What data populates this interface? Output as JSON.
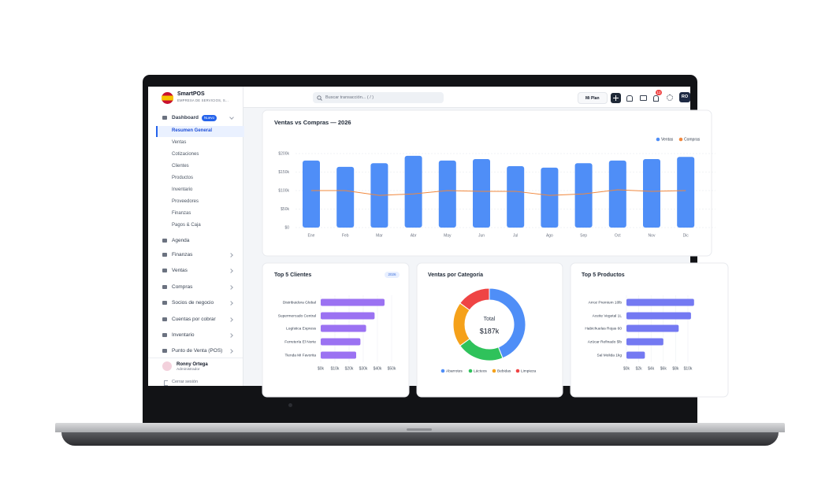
{
  "header": {
    "brand": "SmartPOS",
    "company": "EMPRESA DE SERVICIOS, S...",
    "search": "Buscar transacción... ( / )",
    "plan": "Mi Plan",
    "notifications": "12",
    "user_initials": "RO"
  },
  "sidebar": {
    "dashboard": "Dashboard",
    "badge": "Nuevo",
    "subitems": [
      "Resumen General",
      "Ventas",
      "Cotizaciones",
      "Clientes",
      "Productos",
      "Inventario",
      "Proveedores",
      "Finanzas",
      "Pagos & Caja"
    ],
    "items": [
      "Agenda",
      "Finanzas",
      "Ventas",
      "Compras",
      "Socios de negocio",
      "Cuentas por cobrar",
      "Inventario",
      "Punto de Venta (POS)"
    ],
    "user": {
      "name": "Ronny Ortega",
      "role": "Administrador"
    },
    "logout": "Cerrar sesión"
  },
  "chart_data": [
    {
      "type": "bar",
      "title": "Ventas vs Compras — 2026",
      "categories": [
        "Ene",
        "Feb",
        "Mar",
        "Abr",
        "May",
        "Jun",
        "Jul",
        "Ago",
        "Sep",
        "Oct",
        "Nov",
        "Dic"
      ],
      "series": [
        {
          "name": "Ventas",
          "color": "#4f8ef7",
          "values": [
            181000,
            164000,
            174000,
            194000,
            181000,
            185000,
            166000,
            162000,
            174000,
            181000,
            185000,
            191000
          ]
        },
        {
          "name": "Compras",
          "color": "#f0883e",
          "type": "line",
          "values": [
            100000,
            100000,
            87000,
            91000,
            100000,
            98000,
            98000,
            87000,
            91000,
            102000,
            98000,
            100000
          ]
        }
      ],
      "ylim": [
        0,
        200000
      ],
      "yticks": [
        {
          "value": 0,
          "label": "$0"
        },
        {
          "value": 50000,
          "label": "$50k"
        },
        {
          "value": 100000,
          "label": "$100k"
        },
        {
          "value": 150000,
          "label": "$150k"
        },
        {
          "value": 200000,
          "label": "$200k"
        }
      ],
      "grid": true
    },
    {
      "type": "hbar",
      "title": "Top 5 Clientes",
      "badge": "2026",
      "categories": [
        "Distribuidora Global",
        "Supermercado Central",
        "Logística Express",
        "Ferretería El Norte",
        "Tienda Mi Favorita"
      ],
      "values": [
        45000,
        38000,
        32000,
        28000,
        25000
      ],
      "color": "#9b72f2",
      "xlim": [
        0,
        50000
      ],
      "xticks": [
        {
          "value": 0,
          "label": "$0k"
        },
        {
          "value": 10000,
          "label": "$10k"
        },
        {
          "value": 20000,
          "label": "$20k"
        },
        {
          "value": 30000,
          "label": "$30k"
        },
        {
          "value": 40000,
          "label": "$40k"
        },
        {
          "value": 50000,
          "label": "$50k"
        }
      ],
      "grid": true
    },
    {
      "type": "pie",
      "title": "Ventas por Categoría",
      "center_label": "Total",
      "center_value": "$187k",
      "categories": [
        "Abarrotes",
        "Lácteos",
        "Bebidas",
        "Limpieza"
      ],
      "values": [
        44,
        21,
        20,
        15
      ],
      "colors": [
        "#4f8ef7",
        "#2fc25b",
        "#f5a11a",
        "#ef4444"
      ]
    },
    {
      "type": "hbar",
      "title": "Top 5 Productos",
      "categories": [
        "Arroz Premium 10lb",
        "Aceite Vegetal 1L",
        "Habichuelas Rojas 60",
        "Azúcar Refinado 5lb",
        "Sal Molida 1kg"
      ],
      "values": [
        11000,
        10500,
        8500,
        6000,
        3000
      ],
      "color": "#7479f2",
      "xlim": [
        0,
        10000
      ],
      "xticks": [
        {
          "value": 0,
          "label": "$0k"
        },
        {
          "value": 2000,
          "label": "$2k"
        },
        {
          "value": 4000,
          "label": "$4k"
        },
        {
          "value": 6000,
          "label": "$6k"
        },
        {
          "value": 8000,
          "label": "$8k"
        },
        {
          "value": 10000,
          "label": "$10k"
        }
      ],
      "grid": true
    }
  ]
}
